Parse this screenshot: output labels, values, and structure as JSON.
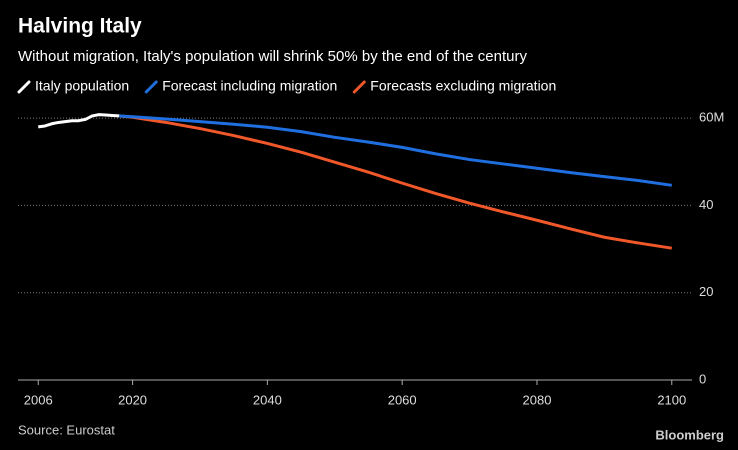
{
  "chart_data": {
    "type": "line",
    "title": "Halving Italy",
    "subtitle": "Without migration, Italy's population will shrink 50% by the end of the century",
    "source": "Source: Eurostat",
    "brand": "Bloomberg",
    "xlim": [
      2003,
      2103
    ],
    "xticks": [
      2006,
      2020,
      2040,
      2060,
      2080,
      2100
    ],
    "ylim": [
      0,
      63
    ],
    "yticks": [
      0,
      20,
      40,
      {
        "value": 60,
        "label": "60M"
      }
    ],
    "grid": true,
    "series": [
      {
        "name": "Italy population",
        "color": "#ffffff",
        "x": [
          2006,
          2007,
          2008,
          2009,
          2010,
          2011,
          2012,
          2013,
          2014,
          2015,
          2016,
          2017,
          2018
        ],
        "values": [
          58.0,
          58.2,
          58.7,
          59.0,
          59.2,
          59.4,
          59.4,
          59.7,
          60.5,
          60.8,
          60.7,
          60.6,
          60.5
        ]
      },
      {
        "name": "Forecast including migration",
        "color": "#1f6fe0",
        "x": [
          2018,
          2020,
          2025,
          2030,
          2035,
          2040,
          2045,
          2050,
          2055,
          2060,
          2065,
          2070,
          2075,
          2080,
          2085,
          2090,
          2095,
          2100
        ],
        "values": [
          60.5,
          60.3,
          59.8,
          59.2,
          58.6,
          57.9,
          56.9,
          55.6,
          54.5,
          53.3,
          51.8,
          50.5,
          49.5,
          48.5,
          47.5,
          46.6,
          45.7,
          44.6
        ]
      },
      {
        "name": "Forecasts excluding migration",
        "color": "#f0582a",
        "x": [
          2018,
          2020,
          2025,
          2030,
          2035,
          2040,
          2045,
          2050,
          2055,
          2060,
          2065,
          2070,
          2075,
          2080,
          2085,
          2090,
          2095,
          2100
        ],
        "values": [
          60.5,
          60.2,
          59.0,
          57.6,
          56.0,
          54.2,
          52.2,
          49.9,
          47.6,
          45.1,
          42.7,
          40.5,
          38.5,
          36.6,
          34.6,
          32.7,
          31.4,
          30.2
        ]
      }
    ]
  }
}
